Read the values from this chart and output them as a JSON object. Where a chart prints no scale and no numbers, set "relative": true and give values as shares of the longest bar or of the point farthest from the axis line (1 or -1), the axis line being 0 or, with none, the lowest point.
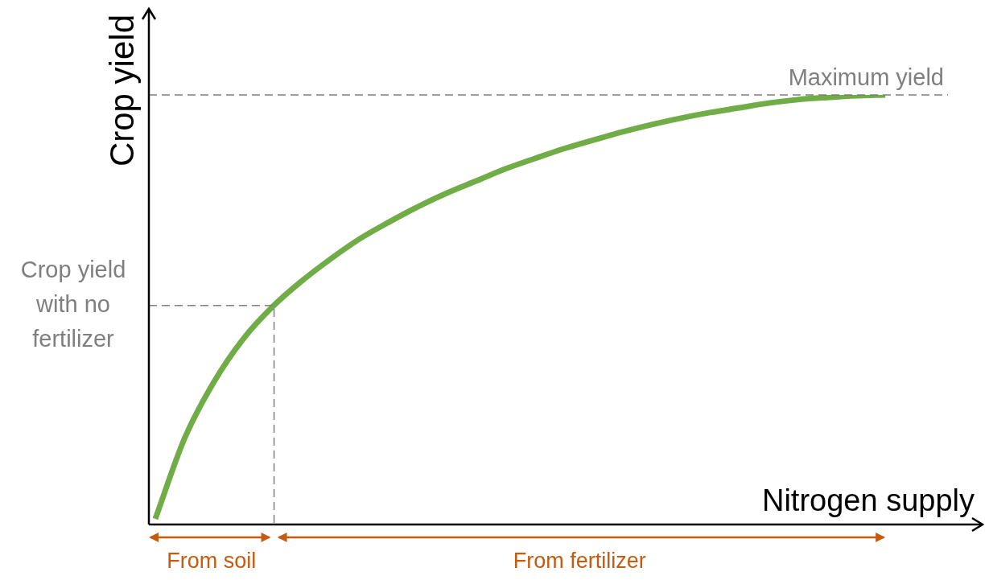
{
  "chart_data": {
    "type": "line",
    "relative": true,
    "xlabel": "Nitrogen supply",
    "ylabel": "Crop yield",
    "categories": [
      null,
      null,
      null,
      null,
      null,
      null,
      null,
      null,
      null,
      null,
      null,
      null,
      null,
      null,
      null,
      null,
      null,
      null,
      null,
      null,
      null,
      null,
      null,
      null,
      null,
      null,
      null,
      null,
      null
    ],
    "series": [
      {
        "color": "#70ad47",
        "values": [
          0.013,
          0.2,
          0.331,
          0.431,
          0.506,
          0.566,
          0.618,
          0.665,
          0.704,
          0.74,
          0.772,
          0.8,
          0.828,
          0.852,
          0.875,
          0.895,
          0.914,
          0.931,
          0.946,
          0.959,
          0.97,
          0.981,
          0.989,
          0.994,
          0.998,
          1,
          null,
          null,
          null
        ]
      }
    ],
    "ref_lines": [
      {
        "axis": "y",
        "value": 0.51,
        "label": "Crop yield with no fertilizer",
        "color": "#7f7f7f",
        "line_style": "dashed"
      },
      {
        "axis": "y",
        "value": 1,
        "label": "Maximum yield",
        "color": "#7f7f7f",
        "line_style": "dashed"
      }
    ],
    "annotations": [
      "From soil",
      "From fertilizer"
    ],
    "legend": false,
    "marker": "none",
    "line_style": "solid"
  }
}
